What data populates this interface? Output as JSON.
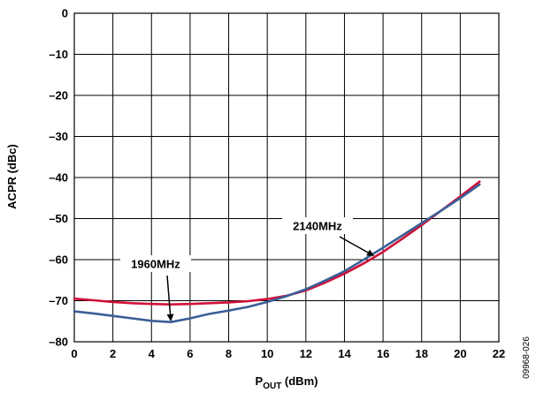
{
  "chart_data": {
    "type": "line",
    "title": "",
    "xlabel_main": "P",
    "xlabel_sub": "OUT",
    "xlabel_unit": " (dBm)",
    "ylabel": "ACPR (dBc)",
    "xlim": [
      0,
      22
    ],
    "ylim": [
      -80,
      0
    ],
    "xticks": [
      0,
      2,
      4,
      6,
      8,
      10,
      12,
      14,
      16,
      18,
      20,
      22
    ],
    "xtick_labels": [
      "0",
      "2",
      "4",
      "6",
      "8",
      "10",
      "12",
      "14",
      "16",
      "18",
      "20",
      "22"
    ],
    "yticks": [
      0,
      -10,
      -20,
      -30,
      -40,
      -50,
      -60,
      -70,
      -80
    ],
    "ytick_labels": [
      "0",
      "–10",
      "–20",
      "–30",
      "–40",
      "–50",
      "–60",
      "–70",
      "–80"
    ],
    "grid": true,
    "series": [
      {
        "color": "#d0103a",
        "x": [
          0,
          1,
          2,
          3,
          4,
          5,
          6,
          7,
          8,
          9,
          10,
          11,
          12,
          13,
          14,
          15,
          16,
          17,
          18,
          19,
          20,
          21
        ],
        "y": [
          -69.5,
          -69.9,
          -70.3,
          -70.6,
          -70.8,
          -70.9,
          -70.8,
          -70.6,
          -70.4,
          -70.1,
          -69.6,
          -68.8,
          -67.5,
          -65.6,
          -63.4,
          -60.9,
          -58.1,
          -54.9,
          -51.6,
          -48.1,
          -44.6,
          -41.0
        ]
      },
      {
        "color": "#3a5f96",
        "x": [
          0,
          1,
          2,
          3,
          4,
          5,
          6,
          7,
          8,
          9,
          10,
          11,
          12,
          13,
          14,
          15,
          16,
          17,
          18,
          19,
          20,
          21
        ],
        "y": [
          -72.6,
          -73.1,
          -73.7,
          -74.3,
          -74.9,
          -75.2,
          -74.3,
          -73.2,
          -72.4,
          -71.5,
          -70.3,
          -68.9,
          -67.2,
          -65.1,
          -62.8,
          -60.0,
          -57.1,
          -54.1,
          -51.1,
          -48.1,
          -45.0,
          -41.7
        ]
      }
    ],
    "annotations": [
      {
        "text": "1960MHz",
        "arrow_to": [
          5,
          -74.8
        ]
      },
      {
        "text": "2140MHz",
        "arrow_to": [
          15.5,
          -59.0
        ]
      }
    ],
    "figure_id": "09968-026"
  }
}
